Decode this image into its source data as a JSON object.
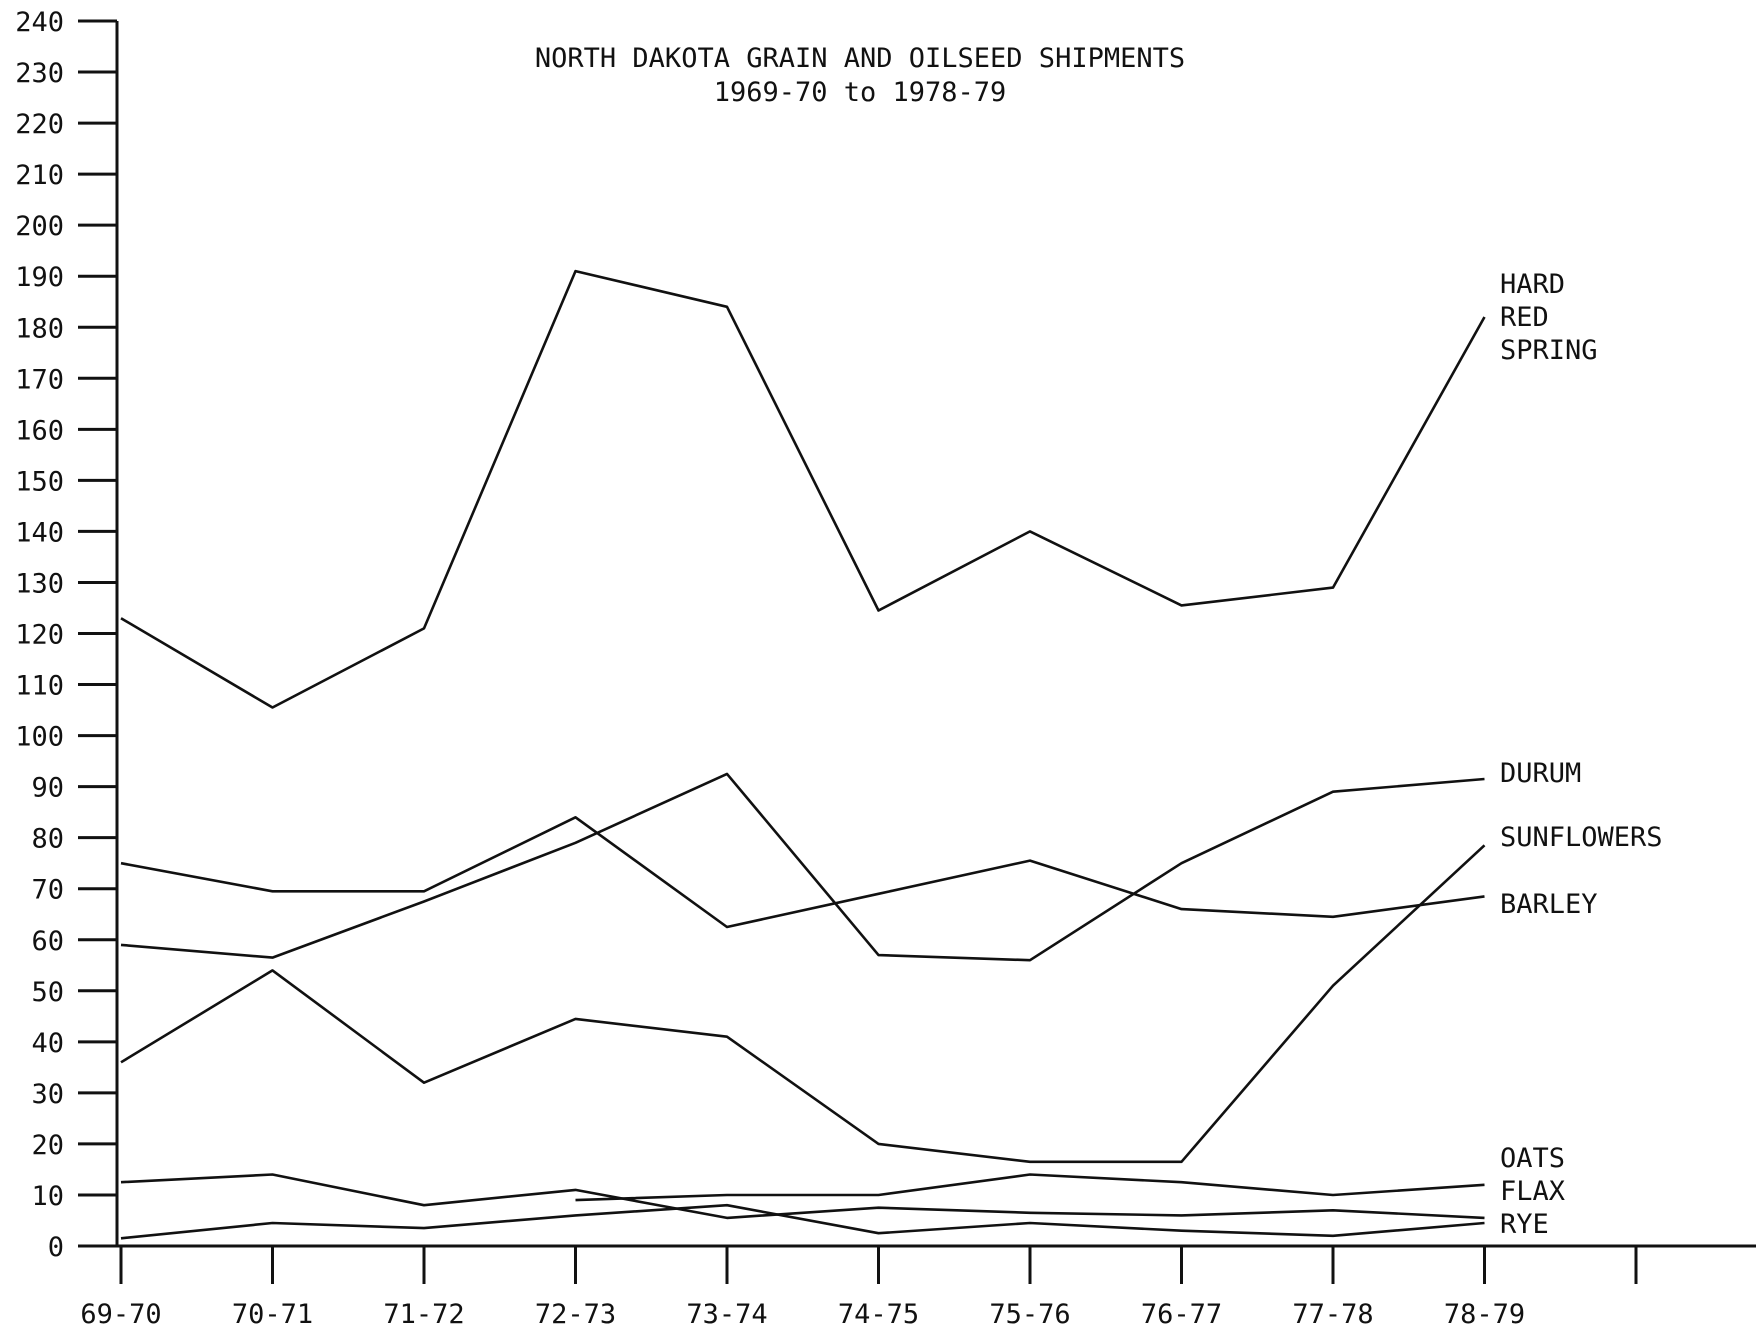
{
  "chart_data": {
    "type": "line",
    "title": "NORTH DAKOTA GRAIN AND OILSEED SHIPMENTS",
    "subtitle": "1969-70 to 1978-79",
    "xlabel": "",
    "ylabel": "",
    "categories": [
      "69-70",
      "70-71",
      "71-72",
      "72-73",
      "73-74",
      "74-75",
      "75-76",
      "76-77",
      "77-78",
      "78-79"
    ],
    "y_ticks": [
      "0",
      "10",
      "20",
      "30",
      "40",
      "50",
      "60",
      "70",
      "80",
      "90",
      "100",
      "110",
      "120",
      "130",
      "140",
      "150",
      "160",
      "170",
      "180",
      "190",
      "200",
      "210",
      "220",
      "230",
      "240"
    ],
    "ylim": [
      0,
      240
    ],
    "grid": false,
    "legend": "labels at right end of lines",
    "series": [
      {
        "name": "HARD RED SPRING",
        "label_lines": [
          "HARD",
          "RED",
          "SPRING"
        ],
        "values": [
          123,
          105.5,
          121,
          191,
          184,
          124.5,
          140,
          125.5,
          129,
          182
        ]
      },
      {
        "name": "DURUM",
        "label_lines": [
          "DURUM"
        ],
        "values": [
          59,
          56.5,
          67.5,
          79,
          92.5,
          57,
          56,
          75,
          89,
          91.5
        ]
      },
      {
        "name": "SUNFLOWERS",
        "label_lines": [
          "SUNFLOWERS"
        ],
        "values": [
          36,
          54,
          32,
          44.5,
          41,
          20,
          16.5,
          16.5,
          51,
          78.5
        ]
      },
      {
        "name": "BARLEY",
        "label_lines": [
          "BARLEY"
        ],
        "values": [
          75,
          69.5,
          69.5,
          84,
          62.5,
          69,
          75.5,
          66,
          64.5,
          68.5
        ]
      },
      {
        "name": "OATS",
        "label_lines": [
          "OATS"
        ],
        "values": [
          12.5,
          14,
          8,
          11,
          5.5,
          7.5,
          6.5,
          6,
          7,
          5.5
        ]
      },
      {
        "name": "FLAX",
        "label_lines": [
          "FLAX"
        ],
        "values": [
          null,
          null,
          null,
          9,
          10,
          10,
          14,
          12.5,
          10,
          12
        ]
      },
      {
        "name": "RYE",
        "label_lines": [
          "RYE"
        ],
        "values": [
          1.5,
          4.5,
          3.5,
          6,
          8,
          2.5,
          4.5,
          3,
          2,
          4.5
        ]
      }
    ]
  }
}
